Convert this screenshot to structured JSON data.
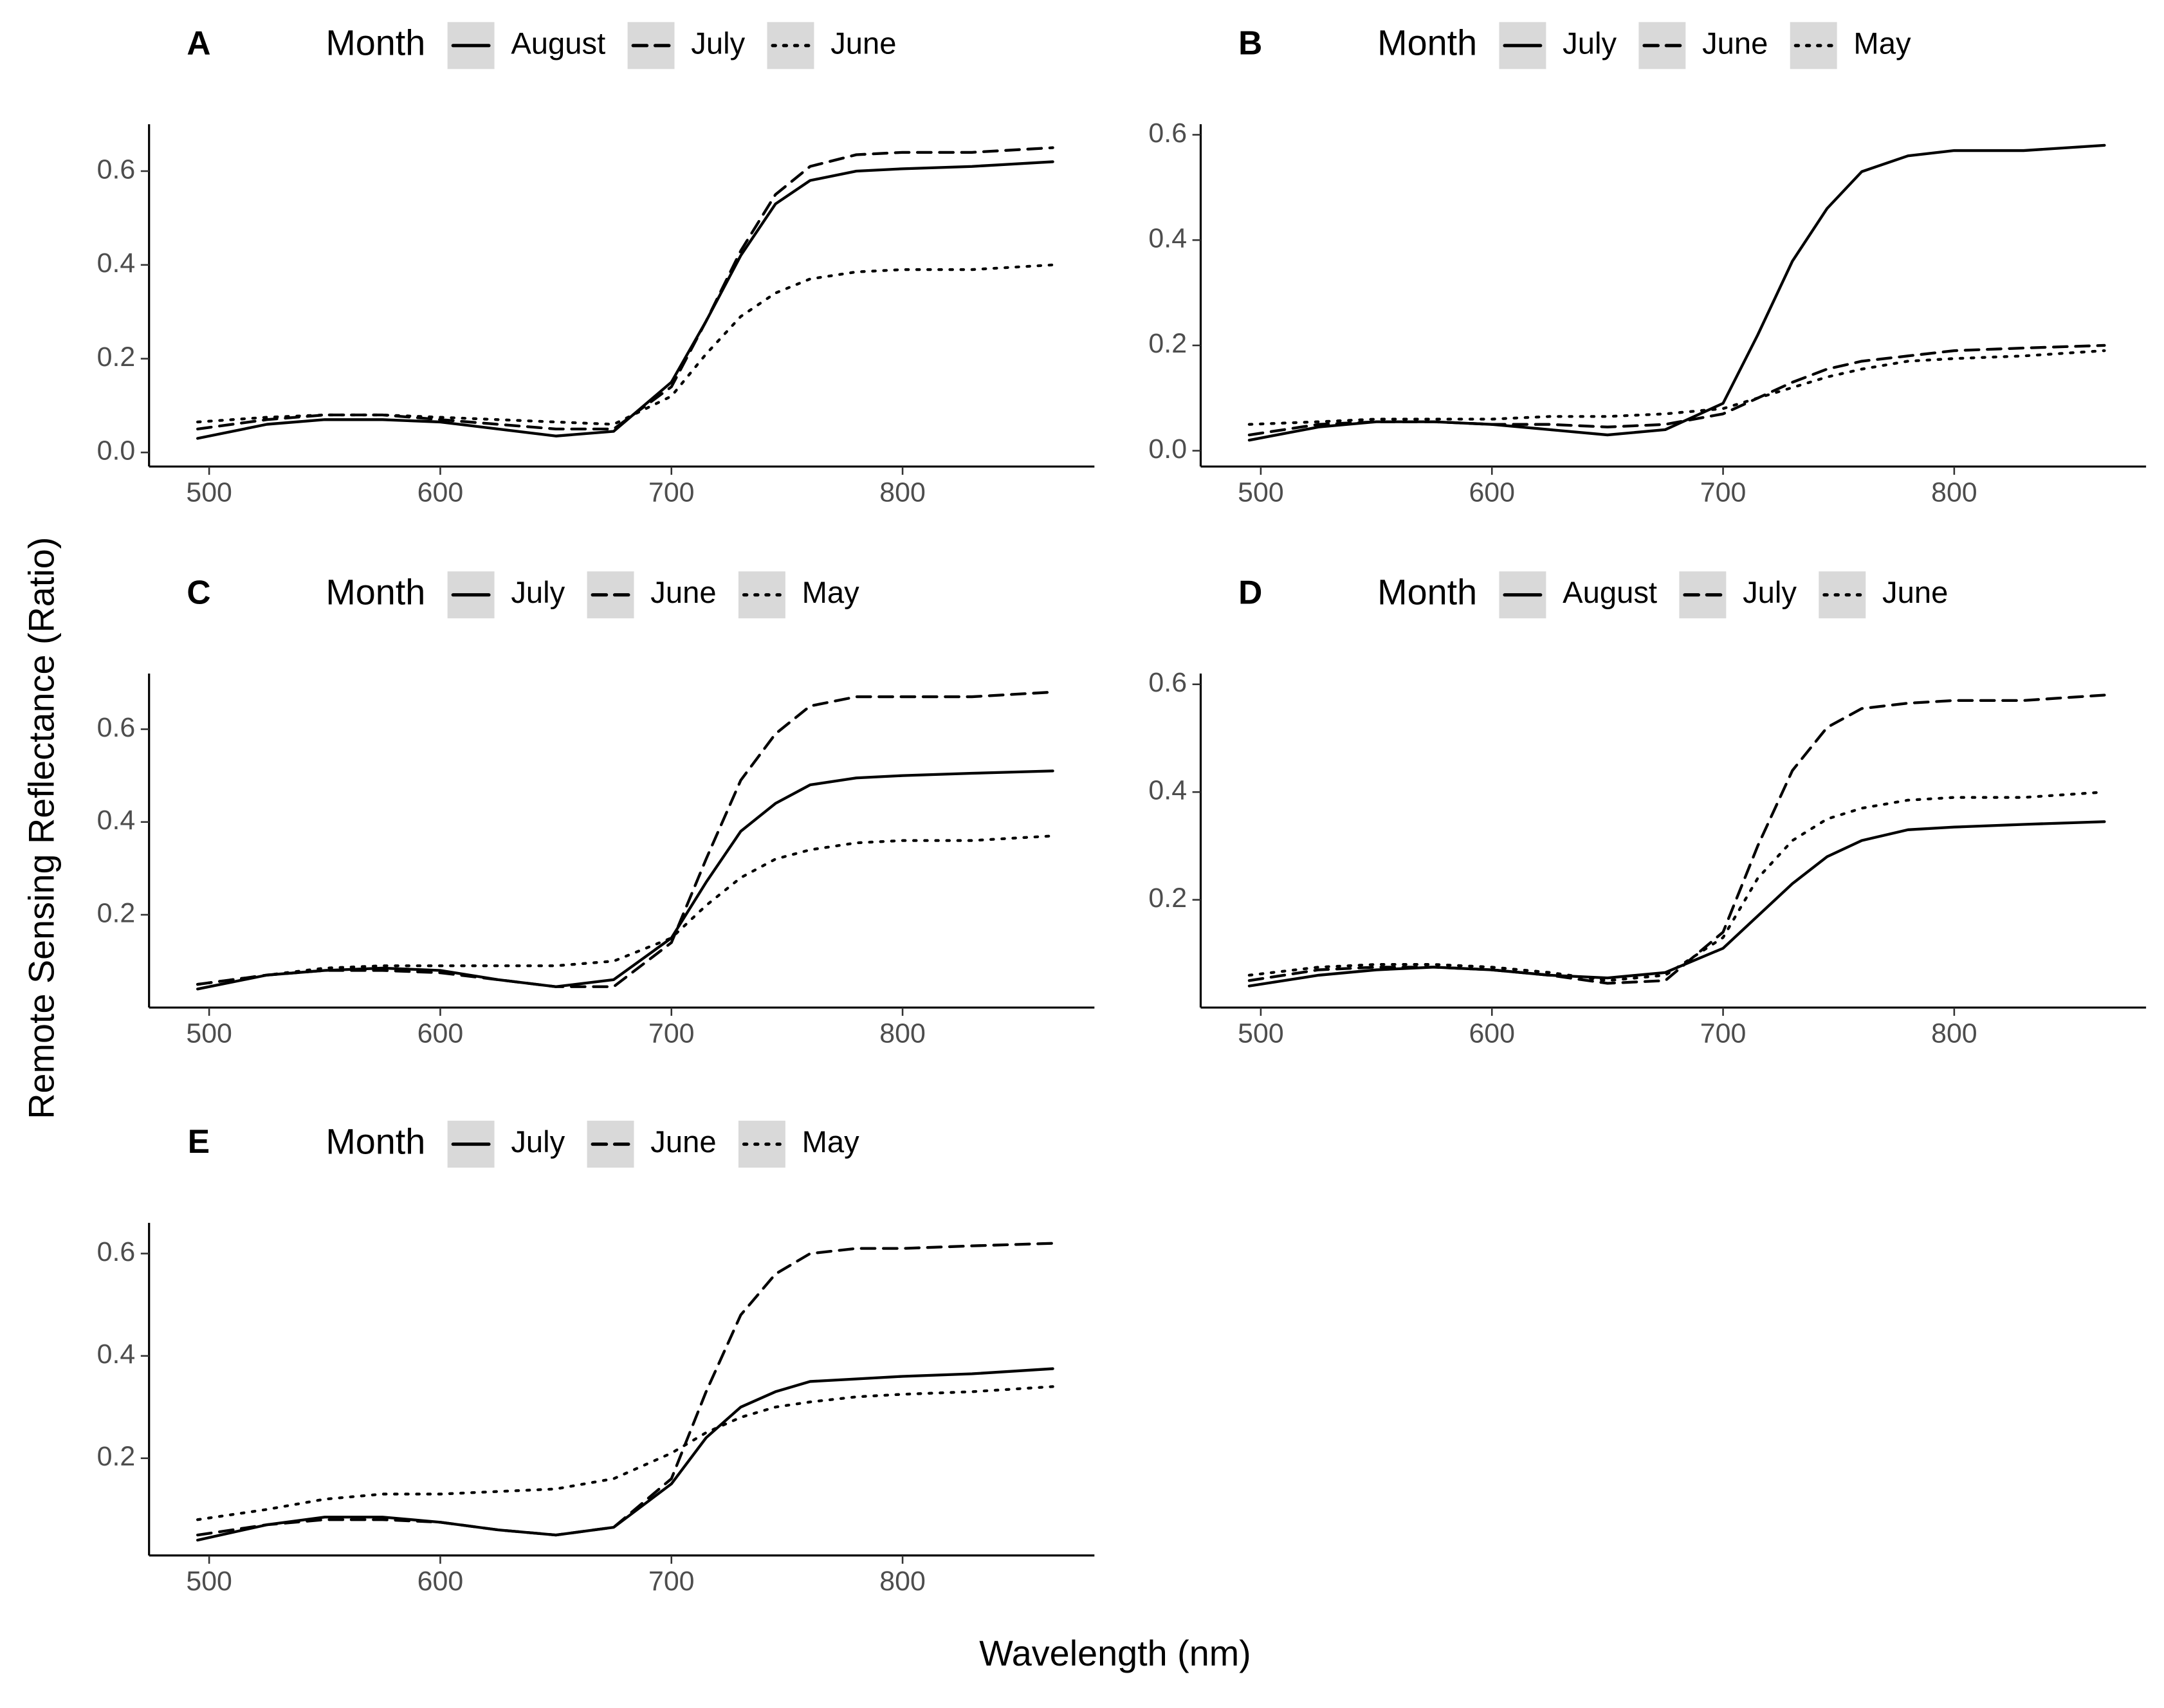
{
  "chart_data": [
    {
      "type": "line",
      "title": "A",
      "legend_title": "Month",
      "x": [
        495,
        525,
        550,
        575,
        600,
        625,
        650,
        675,
        700,
        715,
        730,
        745,
        760,
        780,
        800,
        830,
        865
      ],
      "series": [
        {
          "name": "August",
          "color": "#000000",
          "linestyle": "solid",
          "values": [
            0.03,
            0.06,
            0.07,
            0.07,
            0.065,
            0.05,
            0.035,
            0.045,
            0.15,
            0.28,
            0.42,
            0.53,
            0.58,
            0.6,
            0.605,
            0.61,
            0.62
          ]
        },
        {
          "name": "July",
          "color": "#000000",
          "linestyle": "dashed",
          "values": [
            0.05,
            0.07,
            0.08,
            0.08,
            0.07,
            0.06,
            0.05,
            0.05,
            0.14,
            0.28,
            0.43,
            0.55,
            0.61,
            0.635,
            0.64,
            0.64,
            0.65
          ]
        },
        {
          "name": "June",
          "color": "#000000",
          "linestyle": "dotted",
          "values": [
            0.065,
            0.075,
            0.08,
            0.08,
            0.075,
            0.07,
            0.065,
            0.06,
            0.12,
            0.21,
            0.29,
            0.34,
            0.37,
            0.385,
            0.39,
            0.39,
            0.4
          ]
        }
      ],
      "xlim": [
        474,
        883
      ],
      "ylim": [
        -0.03,
        0.7
      ],
      "xticks": [
        500,
        600,
        700,
        800
      ],
      "yticks": [
        {
          "value": 0,
          "label": "0.0"
        },
        0.2,
        0.4,
        0.6
      ]
    },
    {
      "type": "line",
      "title": "B",
      "legend_title": "Month",
      "x": [
        495,
        525,
        550,
        575,
        600,
        625,
        650,
        675,
        700,
        715,
        730,
        745,
        760,
        780,
        800,
        830,
        865
      ],
      "series": [
        {
          "name": "July",
          "color": "#000000",
          "linestyle": "solid",
          "values": [
            0.02,
            0.045,
            0.055,
            0.055,
            0.05,
            0.04,
            0.03,
            0.04,
            0.09,
            0.22,
            0.36,
            0.46,
            0.53,
            0.56,
            0.57,
            0.57,
            0.58
          ]
        },
        {
          "name": "June",
          "color": "#000000",
          "linestyle": "dashed",
          "values": [
            0.03,
            0.05,
            0.055,
            0.055,
            0.05,
            0.05,
            0.045,
            0.05,
            0.07,
            0.1,
            0.13,
            0.155,
            0.17,
            0.18,
            0.19,
            0.195,
            0.2
          ]
        },
        {
          "name": "May",
          "color": "#000000",
          "linestyle": "dotted",
          "values": [
            0.05,
            0.055,
            0.06,
            0.06,
            0.06,
            0.065,
            0.065,
            0.07,
            0.08,
            0.1,
            0.12,
            0.14,
            0.155,
            0.17,
            0.175,
            0.18,
            0.19
          ]
        }
      ],
      "xlim": [
        474,
        883
      ],
      "ylim": [
        -0.03,
        0.62
      ],
      "xticks": [
        500,
        600,
        700,
        800
      ],
      "yticks": [
        {
          "value": 0,
          "label": "0.0"
        },
        0.2,
        0.4,
        0.6
      ]
    },
    {
      "type": "line",
      "title": "C",
      "legend_title": "Month",
      "x": [
        495,
        525,
        550,
        575,
        600,
        625,
        650,
        675,
        700,
        715,
        730,
        745,
        760,
        780,
        800,
        830,
        865
      ],
      "series": [
        {
          "name": "July",
          "color": "#000000",
          "linestyle": "solid",
          "values": [
            0.04,
            0.07,
            0.08,
            0.085,
            0.08,
            0.06,
            0.045,
            0.06,
            0.15,
            0.27,
            0.38,
            0.44,
            0.48,
            0.495,
            0.5,
            0.505,
            0.51
          ]
        },
        {
          "name": "June",
          "color": "#000000",
          "linestyle": "dashed",
          "values": [
            0.05,
            0.07,
            0.08,
            0.08,
            0.075,
            0.06,
            0.045,
            0.045,
            0.14,
            0.32,
            0.49,
            0.59,
            0.65,
            0.67,
            0.67,
            0.67,
            0.68
          ]
        },
        {
          "name": "May",
          "color": "#000000",
          "linestyle": "dotted",
          "values": [
            0.05,
            0.07,
            0.085,
            0.09,
            0.09,
            0.09,
            0.09,
            0.1,
            0.15,
            0.22,
            0.28,
            0.32,
            0.34,
            0.355,
            0.36,
            0.36,
            0.37
          ]
        }
      ],
      "xlim": [
        474,
        883
      ],
      "ylim": [
        0.0,
        0.72
      ],
      "xticks": [
        500,
        600,
        700,
        800
      ],
      "yticks": [
        0.2,
        0.4,
        0.6
      ]
    },
    {
      "type": "line",
      "title": "D",
      "legend_title": "Month",
      "x": [
        495,
        525,
        550,
        575,
        600,
        625,
        650,
        675,
        700,
        715,
        730,
        745,
        760,
        780,
        800,
        830,
        865
      ],
      "series": [
        {
          "name": "August",
          "color": "#000000",
          "linestyle": "solid",
          "values": [
            0.04,
            0.06,
            0.07,
            0.075,
            0.07,
            0.06,
            0.055,
            0.065,
            0.11,
            0.17,
            0.23,
            0.28,
            0.31,
            0.33,
            0.335,
            0.34,
            0.345
          ]
        },
        {
          "name": "July",
          "color": "#000000",
          "linestyle": "dashed",
          "values": [
            0.05,
            0.07,
            0.075,
            0.075,
            0.07,
            0.06,
            0.045,
            0.05,
            0.14,
            0.3,
            0.44,
            0.52,
            0.555,
            0.565,
            0.57,
            0.57,
            0.58
          ]
        },
        {
          "name": "June",
          "color": "#000000",
          "linestyle": "dotted",
          "values": [
            0.06,
            0.075,
            0.08,
            0.08,
            0.075,
            0.065,
            0.05,
            0.06,
            0.13,
            0.24,
            0.31,
            0.35,
            0.37,
            0.385,
            0.39,
            0.39,
            0.4
          ]
        }
      ],
      "xlim": [
        474,
        883
      ],
      "ylim": [
        0.0,
        0.62
      ],
      "xticks": [
        500,
        600,
        700,
        800
      ],
      "yticks": [
        0.2,
        0.4,
        0.6
      ]
    },
    {
      "type": "line",
      "title": "E",
      "legend_title": "Month",
      "x": [
        495,
        525,
        550,
        575,
        600,
        625,
        650,
        675,
        700,
        715,
        730,
        745,
        760,
        780,
        800,
        830,
        865
      ],
      "series": [
        {
          "name": "July",
          "color": "#000000",
          "linestyle": "solid",
          "values": [
            0.04,
            0.07,
            0.085,
            0.085,
            0.075,
            0.06,
            0.05,
            0.065,
            0.15,
            0.24,
            0.3,
            0.33,
            0.35,
            0.355,
            0.36,
            0.365,
            0.375
          ]
        },
        {
          "name": "June",
          "color": "#000000",
          "linestyle": "dashed",
          "values": [
            0.05,
            0.07,
            0.08,
            0.08,
            0.075,
            0.06,
            0.05,
            0.065,
            0.16,
            0.33,
            0.48,
            0.56,
            0.6,
            0.61,
            0.61,
            0.615,
            0.62
          ]
        },
        {
          "name": "May",
          "color": "#000000",
          "linestyle": "dotted",
          "values": [
            0.08,
            0.1,
            0.12,
            0.13,
            0.13,
            0.135,
            0.14,
            0.16,
            0.21,
            0.25,
            0.28,
            0.3,
            0.31,
            0.32,
            0.325,
            0.33,
            0.34
          ]
        }
      ],
      "xlim": [
        474,
        883
      ],
      "ylim": [
        0.01,
        0.66
      ],
      "xticks": [
        500,
        600,
        700,
        800
      ],
      "yticks": [
        0.2,
        0.4,
        0.6
      ]
    }
  ],
  "xlabel": "Wavelength (nm)",
  "ylabel": "Remote Sensing Reflectance (Ratio)"
}
